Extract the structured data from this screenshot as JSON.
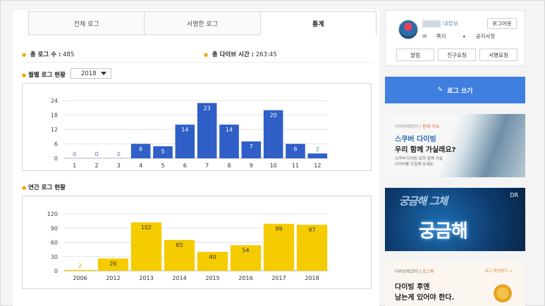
{
  "tabs": [
    {
      "label": "전체 로그"
    },
    {
      "label": "서명한 로그"
    },
    {
      "label": "통계"
    }
  ],
  "stats": {
    "total_logs_label": "총 로그 수 :",
    "total_logs_value": "485",
    "total_dive_time_label": "총 다이브 시간 :",
    "total_dive_time_value": "263:45"
  },
  "monthly": {
    "title": "월별 로그 현황",
    "year_selected": "2018"
  },
  "yearly": {
    "title": "연간 로그 현황"
  },
  "chart_data": [
    {
      "type": "bar",
      "categories": [
        "1",
        "2",
        "3",
        "4",
        "5",
        "6",
        "7",
        "8",
        "9",
        "10",
        "11",
        "12"
      ],
      "values": [
        0,
        0,
        0,
        6,
        5,
        14,
        23,
        14,
        7,
        20,
        6,
        2
      ],
      "ylim": [
        0,
        24
      ],
      "yticks": [
        0,
        6,
        12,
        18,
        24
      ],
      "grid": true,
      "color": "#2f5fc7"
    },
    {
      "type": "bar",
      "categories": [
        "2006",
        "2012",
        "2013",
        "2014",
        "2015",
        "2016",
        "2017",
        "2018"
      ],
      "values": [
        2,
        26,
        102,
        65,
        40,
        54,
        99,
        97
      ],
      "ylim": [
        0,
        120
      ],
      "yticks": [
        0,
        30,
        60,
        90,
        120
      ],
      "grid": true,
      "color": "#f5cc00"
    }
  ],
  "profile": {
    "my_info": "내정보",
    "logout": "로그아웃",
    "notes": "쪽지",
    "notice": "공지사항",
    "buttons": [
      "알림",
      "친구요청",
      "서명요청"
    ]
  },
  "write_button": "로그 쓰기",
  "ads": {
    "ad1": {
      "source": "다이브레코더 |",
      "tag": "함께 가요",
      "headline1": "스쿠버 다이빙",
      "headline2": "우리 함께 가실래요?",
      "desc1": "스쿠버 다이빙 로져 함께 가실",
      "desc2": "다이버를 모집해 보세요."
    },
    "ad2": {
      "text_back": "궁금해 그체",
      "text_front": "궁금해",
      "logo": "DR"
    },
    "ad3": {
      "source": "다이브레코더 |",
      "tag": "로그북",
      "tag2": "로그 작성하기 >",
      "headline1": "다이빙 후엔",
      "headline2": "남는게 있어야 한다."
    }
  }
}
